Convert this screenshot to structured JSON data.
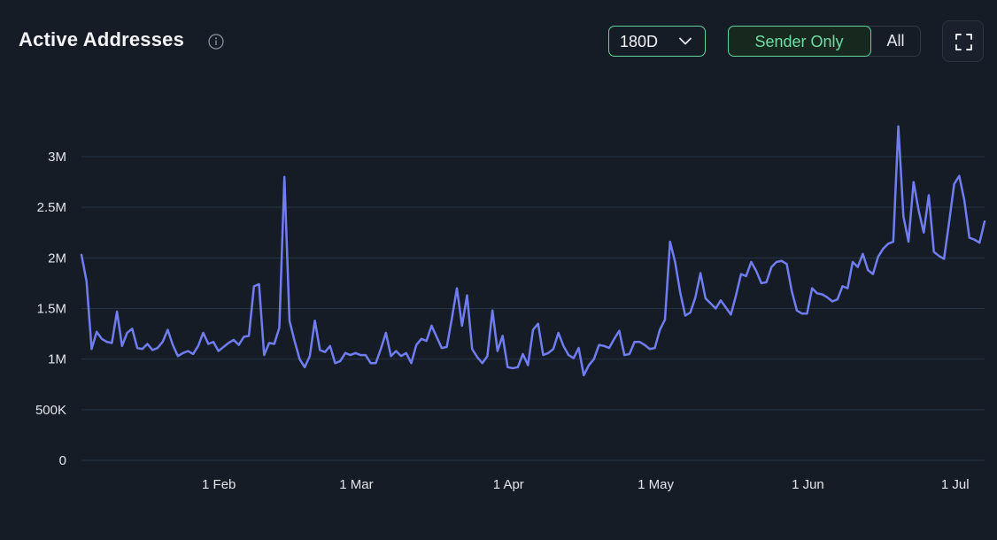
{
  "header": {
    "title": "Active Addresses",
    "info_icon": "info-icon",
    "range_select": {
      "value": "180D",
      "icon": "chevron-down-icon"
    },
    "filter_toggle": {
      "active": "Sender Only",
      "inactive": "All"
    },
    "fullscreen_icon": "fullscreen-icon"
  },
  "colors": {
    "background": "#161c26",
    "line": "#6f7df0",
    "grid": "#243446",
    "accent": "#5fd49a"
  },
  "chart_data": {
    "type": "line",
    "title": "Active Addresses",
    "xlabel": "",
    "ylabel": "",
    "x_start": "2023-01-04",
    "x_end": "2023-07-07",
    "ylim": [
      0,
      3300000
    ],
    "y_ticks": [
      0,
      500000,
      1000000,
      1500000,
      2000000,
      2500000,
      3000000
    ],
    "y_tick_labels": [
      "0",
      "500K",
      "1M",
      "1.5M",
      "2M",
      "2.5M",
      "3M"
    ],
    "x_ticks": [
      {
        "label": "1 Feb",
        "date": "2023-02-01"
      },
      {
        "label": "1 Mar",
        "date": "2023-03-01"
      },
      {
        "label": "1 Apr",
        "date": "2023-04-01"
      },
      {
        "label": "1 May",
        "date": "2023-05-01"
      },
      {
        "label": "1 Jun",
        "date": "2023-06-01"
      },
      {
        "label": "1 Jul",
        "date": "2023-07-01"
      }
    ],
    "grid": true,
    "legend": "none",
    "series": [
      {
        "values": [
          2030000,
          1770000,
          1100000,
          1270000,
          1200000,
          1170000,
          1160000,
          1470000,
          1130000,
          1260000,
          1300000,
          1110000,
          1100000,
          1150000,
          1090000,
          1110000,
          1170000,
          1290000,
          1140000,
          1030000,
          1060000,
          1080000,
          1050000,
          1130000,
          1260000,
          1150000,
          1170000,
          1080000,
          1120000,
          1160000,
          1190000,
          1140000,
          1220000,
          1230000,
          1720000,
          1740000,
          1040000,
          1160000,
          1150000,
          1310000,
          2800000,
          1380000,
          1180000,
          1000000,
          920000,
          1030000,
          1380000,
          1090000,
          1070000,
          1130000,
          960000,
          980000,
          1060000,
          1040000,
          1060000,
          1040000,
          1040000,
          960000,
          960000,
          1100000,
          1260000,
          1030000,
          1080000,
          1030000,
          1060000,
          960000,
          1140000,
          1200000,
          1180000,
          1330000,
          1220000,
          1110000,
          1120000,
          1400000,
          1700000,
          1330000,
          1630000,
          1100000,
          1020000,
          960000,
          1030000,
          1480000,
          1080000,
          1230000,
          920000,
          910000,
          920000,
          1050000,
          940000,
          1290000,
          1350000,
          1040000,
          1060000,
          1100000,
          1260000,
          1130000,
          1040000,
          1010000,
          1110000,
          840000,
          940000,
          1000000,
          1140000,
          1130000,
          1110000,
          1200000,
          1280000,
          1040000,
          1050000,
          1170000,
          1170000,
          1140000,
          1100000,
          1110000,
          1290000,
          1390000,
          2160000,
          1960000,
          1660000,
          1430000,
          1460000,
          1610000,
          1850000,
          1600000,
          1550000,
          1500000,
          1580000,
          1510000,
          1440000,
          1630000,
          1840000,
          1820000,
          1960000,
          1870000,
          1750000,
          1760000,
          1910000,
          1960000,
          1970000,
          1940000,
          1670000,
          1480000,
          1450000,
          1450000,
          1700000,
          1650000,
          1640000,
          1610000,
          1570000,
          1590000,
          1720000,
          1700000,
          1960000,
          1910000,
          2040000,
          1880000,
          1840000,
          2010000,
          2090000,
          2140000,
          2160000,
          3300000,
          2410000,
          2160000,
          2750000,
          2470000,
          2250000,
          2620000,
          2060000,
          2020000,
          1990000,
          2350000,
          2730000,
          2810000,
          2570000,
          2200000,
          2180000,
          2150000,
          2360000
        ]
      }
    ]
  }
}
